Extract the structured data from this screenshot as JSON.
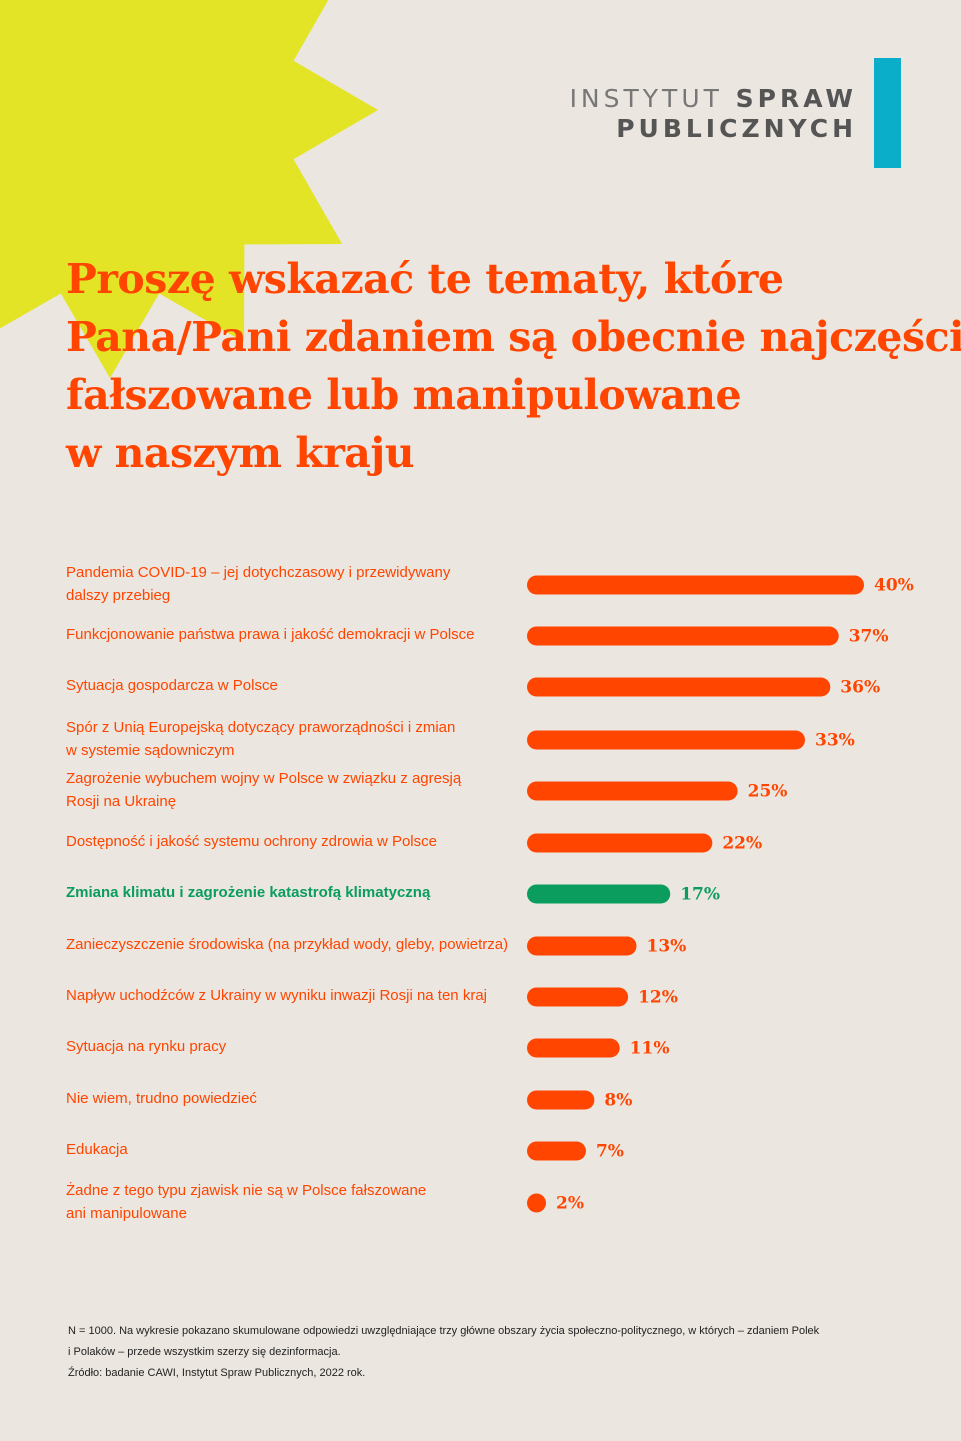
{
  "logo": {
    "line1_light": "INSTYTUT",
    "line1_bold": "SPRAW",
    "line2": "PUBLICZNYCH"
  },
  "title_lines": [
    "Proszę wskazać te tematy, które",
    "Pana/Pani zdaniem są obecnie najczęściej",
    "fałszowane lub manipulowane",
    "w naszym kraju"
  ],
  "colors": {
    "accent": "#ff4500",
    "highlight": "#0a9d5e",
    "sun": "#e2e425",
    "logo_bar": "#0aaec9",
    "background": "#ebe6df"
  },
  "chart_data": {
    "type": "bar",
    "orientation": "horizontal",
    "title": "Proszę wskazać te tematy, które Pana/Pani zdaniem są obecnie najczęściej fałszowane lub manipulowane w naszym kraju",
    "categories": [
      [
        "Pandemia COVID-19 – jej dotychczasowy i przewidywany",
        "dalszy przebieg"
      ],
      [
        "Funkcjonowanie państwa prawa i jakość demokracji w Polsce"
      ],
      [
        "Sytuacja gospodarcza w Polsce"
      ],
      [
        "Spór z Unią Europejską dotyczący praworządności i zmian",
        "w systemie sądowniczym"
      ],
      [
        "Zagrożenie wybuchem wojny w Polsce w związku z agresją",
        "Rosji na Ukrainę"
      ],
      [
        "Dostępność i jakość systemu ochrony zdrowia w Polsce"
      ],
      [
        "Zmiana klimatu i zagrożenie katastrofą klimatyczną"
      ],
      [
        "Zanieczyszczenie środowiska (na przykład wody, gleby, powietrza)"
      ],
      [
        "Napływ uchodźców z Ukrainy w wyniku inwazji Rosji na ten kraj"
      ],
      [
        "Sytuacja na rynku pracy"
      ],
      [
        "Nie wiem, trudno powiedzieć"
      ],
      [
        "Edukacja"
      ],
      [
        "Żadne z tego typu zjawisk nie są w Polsce fałszowane",
        "ani manipulowane"
      ]
    ],
    "values": [
      40,
      37,
      36,
      33,
      25,
      22,
      17,
      13,
      12,
      11,
      8,
      7,
      2
    ],
    "value_labels": [
      "40%",
      "37%",
      "36%",
      "33%",
      "25%",
      "22%",
      "17%",
      "13%",
      "12%",
      "11%",
      "8%",
      "7%",
      "2%"
    ],
    "highlighted_index": 6,
    "xlim": [
      0,
      40
    ],
    "grid": false,
    "legend": "none"
  },
  "footnote": [
    "N = 1000. Na wykresie pokazano skumulowane odpowiedzi uwzględniające trzy główne obszary życia społeczno-politycznego, w których – zdaniem Polek",
    "i Polaków – przede wszystkim szerzy się dezinformacja.",
    "Źródło: badanie CAWI, Instytut Spraw Publicznych, 2022 rok."
  ]
}
